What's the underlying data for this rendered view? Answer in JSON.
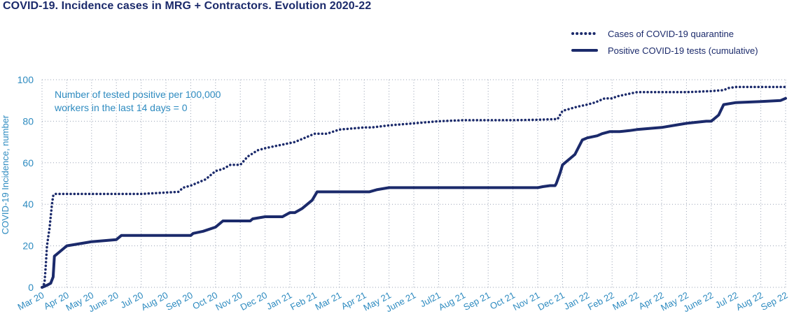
{
  "title": "COVID-19. Incidence cases in MRG + Contractors. Evolution 2020-22",
  "colors": {
    "series": "#1b2a6b",
    "axis_text": "#2e8bc0",
    "grid": "#9aa3b5"
  },
  "annotation": {
    "line1": "Number of tested positive per 100,000",
    "line2": "workers in the last 14 days = 0"
  },
  "chart_data": {
    "type": "line",
    "ylabel": "COVID-19 Incidence, number",
    "ylim": [
      0,
      100
    ],
    "yticks": [
      0,
      20,
      40,
      60,
      80,
      100
    ],
    "grid": true,
    "legend_position": "top-right",
    "categories": [
      "Mar 20",
      "Apr 20",
      "May 20",
      "June 20",
      "Jul 20",
      "Aug 20",
      "Sep 20",
      "Oct 20",
      "Nov 20",
      "Dec 20",
      "Jan 21",
      "Feb 21",
      "Mar 21",
      "Apr 21",
      "May 21",
      "June 21",
      "Jul21",
      "Aug 21",
      "Sep 21",
      "Oct 21",
      "Nov 21",
      "Dec 21",
      "Jan 22",
      "Feb 22",
      "Mar 22",
      "Apr 22",
      "May 22",
      "June 22",
      "Jul 22",
      "Aug 22",
      "Sep 22"
    ],
    "series": [
      {
        "name": "Cases of COVID-19 quarantine",
        "style": "dotted",
        "x": [
          0,
          0.1,
          0.15,
          0.2,
          0.25,
          0.3,
          0.4,
          0.45,
          0.5,
          0.6,
          0.7,
          0.8,
          1,
          2,
          3,
          4,
          5.5,
          5.7,
          6,
          6.4,
          6.6,
          7,
          7.3,
          7.6,
          8,
          8.3,
          8.7,
          9,
          9.4,
          9.8,
          10.2,
          10.6,
          10.8,
          11,
          11.5,
          12,
          12.5,
          13,
          13.3,
          14,
          15,
          16,
          17,
          18,
          19,
          20,
          20.7,
          20.8,
          21,
          21.3,
          21.6,
          22,
          22.3,
          22.7,
          23,
          23.2,
          23.6,
          24,
          25,
          26,
          27,
          27.5,
          27.7,
          28,
          29,
          30
        ],
        "y": [
          0,
          2,
          10,
          20,
          24,
          28,
          40,
          44,
          45,
          45,
          45,
          45,
          45,
          45,
          45,
          45,
          46,
          48,
          49,
          51,
          52,
          56,
          57,
          59,
          59,
          63,
          66,
          67,
          68,
          69,
          70,
          72,
          73,
          74,
          74,
          76,
          76.5,
          77,
          77,
          78,
          79,
          80,
          80.5,
          80.5,
          80.5,
          80.7,
          81,
          81,
          85,
          86,
          87,
          88,
          89,
          91,
          91,
          92,
          93,
          94,
          94,
          94,
          94.5,
          95,
          96,
          96.5,
          96.5,
          96.5
        ]
      },
      {
        "name": "Positive COVID-19 tests (cumulative)",
        "style": "solid",
        "x": [
          0,
          0.2,
          0.35,
          0.45,
          0.5,
          0.7,
          1,
          2,
          3,
          3.2,
          4,
          5,
          6,
          6.1,
          6.5,
          7,
          7.3,
          7.5,
          8,
          8.4,
          8.5,
          9,
          9.5,
          9.7,
          10,
          10.2,
          10.5,
          10.7,
          10.9,
          11.1,
          11.4,
          12,
          13,
          13.2,
          13.5,
          14,
          15,
          16,
          17,
          18,
          19,
          20,
          20.2,
          20.5,
          20.7,
          20.75,
          20.9,
          21,
          21.3,
          21.5,
          21.8,
          22,
          22.4,
          22.6,
          22.9,
          23.3,
          23.7,
          24,
          25,
          26,
          26.8,
          27,
          27.2,
          27.3,
          27.5,
          28,
          29,
          29.8,
          30
        ],
        "y": [
          0,
          1,
          2,
          5,
          15,
          17,
          20,
          22,
          23,
          25,
          25,
          25,
          25,
          26,
          27,
          29,
          32,
          32,
          32,
          32,
          33,
          34,
          34,
          34,
          36,
          36,
          38,
          40,
          42,
          46,
          46,
          46,
          46,
          46,
          47,
          48,
          48,
          48,
          48,
          48,
          48,
          48,
          48.5,
          49,
          49,
          50,
          55,
          59,
          62,
          64,
          71,
          72,
          73,
          74,
          75,
          75,
          75.5,
          76,
          77,
          79,
          80,
          80,
          82,
          83,
          88,
          89,
          89.5,
          90,
          91
        ]
      }
    ]
  }
}
